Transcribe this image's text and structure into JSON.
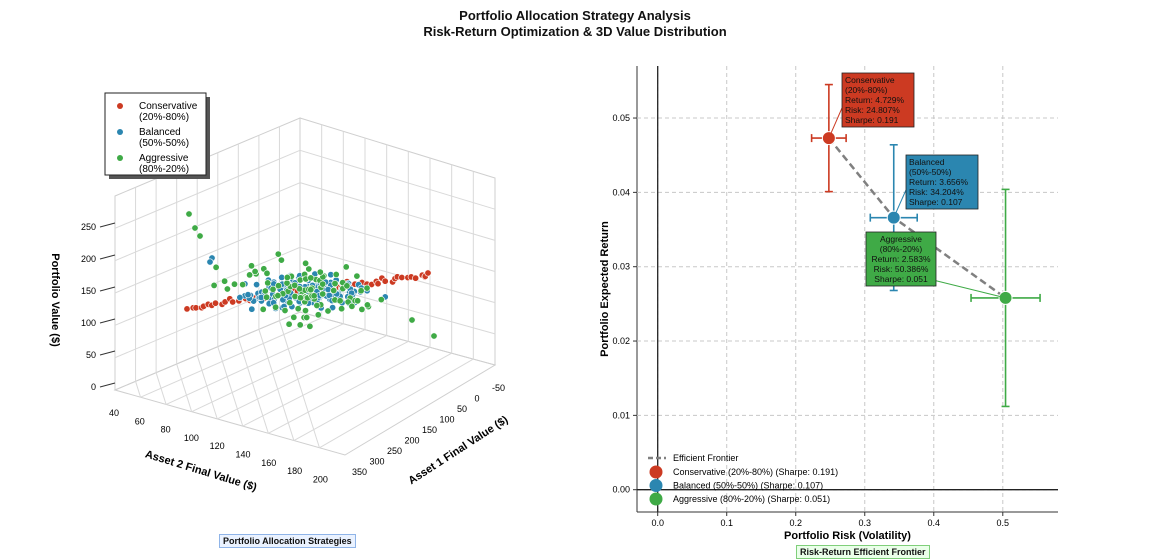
{
  "title": "Portfolio Allocation Strategy Analysis",
  "subtitle": "Risk-Return Optimization & 3D Value Distribution",
  "colors": {
    "conservative": "#cc3a22",
    "balanced": "#2b86b0",
    "aggressive": "#3faa46",
    "frontier": "#808080"
  },
  "chart_data": [
    {
      "type": "scatter3d",
      "panel_label": "Portfolio Allocation Strategies",
      "xlabel": "Asset 1 Final Value ($)",
      "ylabel": "Asset 2 Final Value ($)",
      "zlabel": "Portfolio Value ($)",
      "x_ticks": [
        "-50",
        "0",
        "50",
        "100",
        "150",
        "200",
        "250",
        "300",
        "350"
      ],
      "y_ticks": [
        "40",
        "60",
        "80",
        "100",
        "120",
        "140",
        "160",
        "180",
        "200"
      ],
      "z_ticks": [
        "0",
        "50",
        "100",
        "150",
        "200",
        "250"
      ],
      "legend_position": "top-left",
      "series": [
        {
          "name": "Conservative\n(20%-80%)",
          "color_key": "conservative",
          "description": "Points lie along a nearly straight ridge from low to high Asset 1 values, portfolio value ~120-175."
        },
        {
          "name": "Balanced\n(50%-50%)",
          "color_key": "balanced",
          "description": "Dense cluster around portfolio value ~130-170, spread moderately."
        },
        {
          "name": "Aggressive\n(80%-20%)",
          "color_key": "aggressive",
          "description": "Widest spread, portfolio value ~60-260."
        }
      ]
    },
    {
      "type": "scatter",
      "panel_label": "Risk-Return Efficient Frontier",
      "xlabel": "Portfolio Risk (Volatility)",
      "ylabel": "Portfolio Expected Return",
      "xlim": [
        -0.03,
        0.58
      ],
      "ylim": [
        -0.003,
        0.057
      ],
      "x_ticks": [
        "0.0",
        "0.1",
        "0.2",
        "0.3",
        "0.4",
        "0.5"
      ],
      "y_ticks": [
        "0.00",
        "0.01",
        "0.02",
        "0.03",
        "0.04",
        "0.05"
      ],
      "grid": true,
      "legend_position": "bottom-left",
      "legend": [
        "Efficient Frontier",
        "Conservative (20%-80%) (Sharpe: 0.191)",
        "Balanced (50%-50%) (Sharpe: 0.107)",
        "Aggressive (80%-20%) (Sharpe: 0.051)"
      ],
      "frontier": {
        "x": [
          0.248,
          0.342,
          0.504
        ],
        "y": [
          0.0473,
          0.0366,
          0.0258
        ]
      },
      "points": [
        {
          "name": "Conservative (20%-80%)",
          "color_key": "conservative",
          "risk": 0.248,
          "ret": 0.0473,
          "xerr": 0.025,
          "yerr": 0.0072,
          "annotation": [
            "Conservative",
            "(20%-80%)",
            "Return: 4.729%",
            "Risk: 24.807%",
            "Sharpe: 0.191"
          ]
        },
        {
          "name": "Balanced (50%-50%)",
          "color_key": "balanced",
          "risk": 0.342,
          "ret": 0.0366,
          "xerr": 0.034,
          "yerr": 0.0098,
          "annotation": [
            "Balanced",
            "(50%-50%)",
            "Return: 3.656%",
            "Risk: 34.204%",
            "Sharpe: 0.107"
          ]
        },
        {
          "name": "Aggressive (80%-20%)",
          "color_key": "aggressive",
          "risk": 0.504,
          "ret": 0.0258,
          "xerr": 0.05,
          "yerr": 0.0146,
          "annotation": [
            "Aggressive",
            "(80%-20%)",
            "Return: 2.583%",
            "Risk: 50.386%",
            "Sharpe: 0.051"
          ]
        }
      ]
    }
  ]
}
